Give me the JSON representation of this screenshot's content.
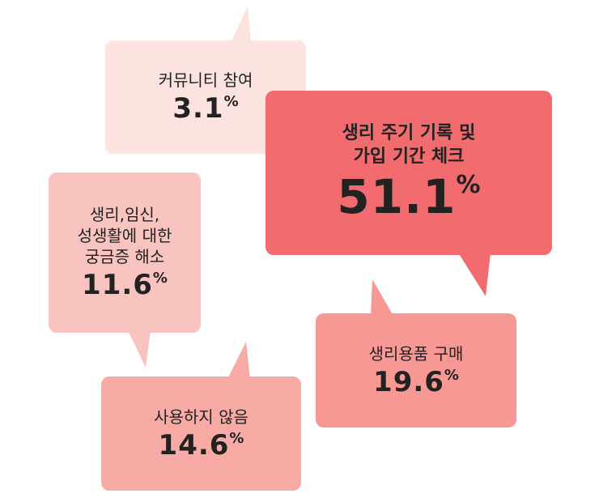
{
  "chart_data": {
    "type": "callout",
    "categories": [
      "커뮤니티 참여",
      "생리 주기 기록 및\n가입 기간 체크",
      "생리,임신,\n성생활에 대한\n궁금증 해소",
      "생리용품 구매",
      "사용하지 않음"
    ],
    "values": [
      3.1,
      51.1,
      11.6,
      19.6,
      14.6
    ],
    "unit": "%",
    "colors": [
      "#fde3df",
      "#f26b6e",
      "#f9c3c0",
      "#f79895",
      "#f8aaa5"
    ]
  }
}
